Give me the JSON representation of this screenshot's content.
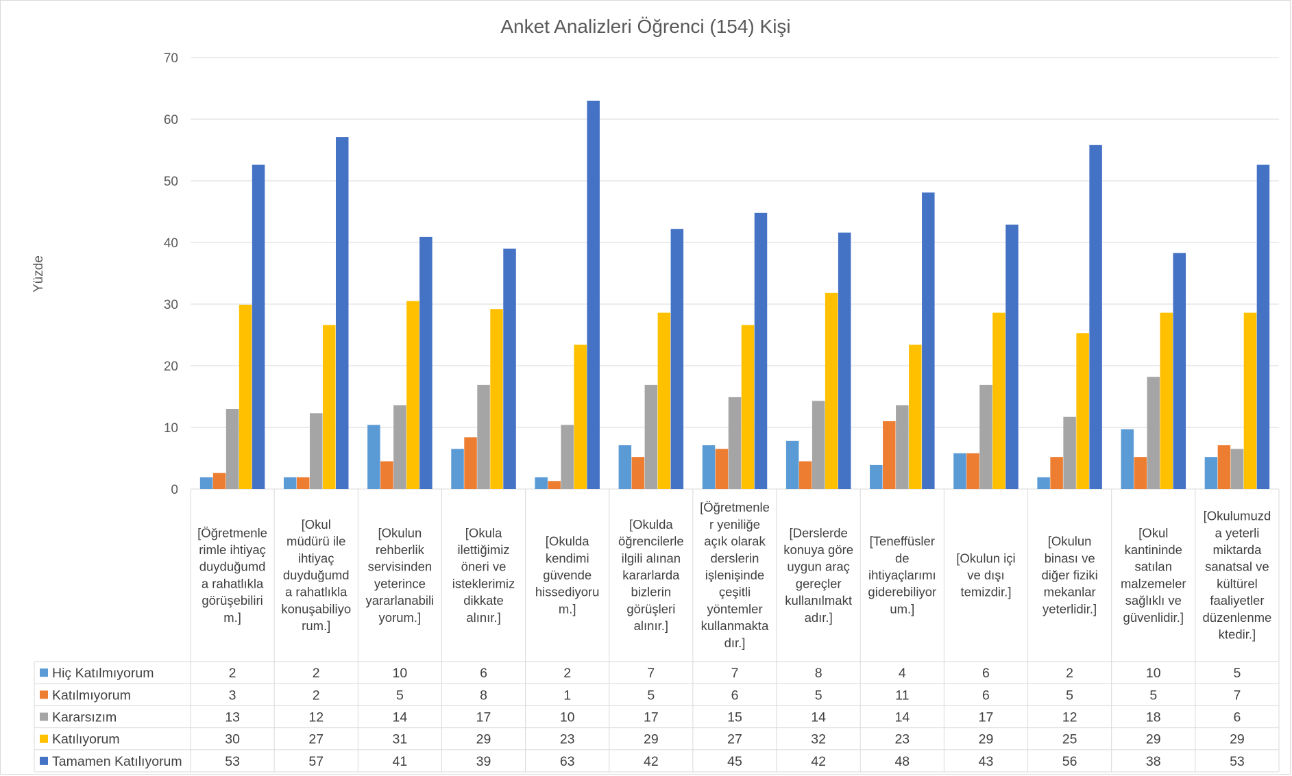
{
  "chart_data": {
    "type": "bar",
    "title": "Anket Analizleri Öğrenci (154) Kişi",
    "ylabel": "Yüzde",
    "xlabel": "",
    "ylim": [
      0,
      70
    ],
    "yticks": [
      0,
      10,
      20,
      30,
      40,
      50,
      60,
      70
    ],
    "grid": true,
    "legend": "data-table-left",
    "categories": [
      [
        "[Öğretmenle",
        "rimle ihtiyaç",
        "duyduğumd",
        "a rahatlıkla",
        "görüşebiliri",
        "m.]"
      ],
      [
        "[Okul",
        "müdürü ile",
        "ihtiyaç",
        "duyduğumd",
        "a rahatlıkla",
        "konuşabiliyo",
        "rum.]"
      ],
      [
        "[Okulun",
        "rehberlik",
        "servisinden",
        "yeterince",
        "yararlanabili",
        "yorum.]"
      ],
      [
        "[Okula",
        "ilettiğimiz",
        "öneri ve",
        "isteklerimiz",
        "dikkate",
        "alınır.]"
      ],
      [
        "[Okulda",
        "kendimi",
        "güvende",
        "hissediyoru",
        "m.]"
      ],
      [
        "[Okulda",
        "öğrencilerle",
        "ilgili alınan",
        "kararlarda",
        "bizlerin",
        "görüşleri",
        "alınır.]"
      ],
      [
        "[Öğretmenle",
        "r yeniliğe",
        "açık olarak",
        "derslerin",
        "işlenişinde",
        "çeşitli",
        "yöntemler",
        "kullanmakta",
        "dır.]"
      ],
      [
        "[Derslerde",
        "konuya göre",
        "uygun araç",
        "gereçler",
        "kullanılmakt",
        "adır.]"
      ],
      [
        "[Teneffüsler",
        "de",
        "ihtiyaçlarımı",
        "giderebiliyor",
        "um.]"
      ],
      [
        "[Okulun içi",
        "ve dışı",
        "temizdir.]"
      ],
      [
        "[Okulun",
        "binası ve",
        "diğer fiziki",
        "mekanlar",
        "yeterlidir.]"
      ],
      [
        "[Okul",
        "kantininde",
        "satılan",
        "malzemeler",
        "sağlıklı ve",
        "güvenlidir.]"
      ],
      [
        "[Okulumuzd",
        "a yeterli",
        "miktarda",
        "sanatsal ve",
        "kültürel",
        "faaliyetler",
        "düzenlenme",
        "ktedir.]"
      ]
    ],
    "series": [
      {
        "name": "Hiç Katılmıyorum",
        "color": "#5b9bd5",
        "labels": [
          2,
          2,
          10,
          6,
          2,
          7,
          7,
          8,
          4,
          6,
          2,
          10,
          5
        ],
        "values": [
          1.9,
          1.9,
          10.4,
          6.5,
          1.9,
          7.1,
          7.1,
          7.8,
          3.9,
          5.8,
          1.9,
          9.7,
          5.2
        ]
      },
      {
        "name": "Katılmıyorum",
        "color": "#ed7d31",
        "labels": [
          3,
          2,
          5,
          8,
          1,
          5,
          6,
          5,
          11,
          6,
          5,
          5,
          7
        ],
        "values": [
          2.6,
          1.9,
          4.5,
          8.4,
          1.3,
          5.2,
          6.5,
          4.5,
          11.0,
          5.8,
          5.2,
          5.2,
          7.1
        ]
      },
      {
        "name": "Kararsızım",
        "color": "#a5a5a5",
        "labels": [
          13,
          12,
          14,
          17,
          10,
          17,
          15,
          14,
          14,
          17,
          12,
          18,
          6
        ],
        "values": [
          13.0,
          12.3,
          13.6,
          16.9,
          10.4,
          16.9,
          14.9,
          14.3,
          13.6,
          16.9,
          11.7,
          18.2,
          6.5
        ]
      },
      {
        "name": "Katılıyorum",
        "color": "#ffc000",
        "labels": [
          30,
          27,
          31,
          29,
          23,
          29,
          27,
          32,
          23,
          29,
          25,
          29,
          29
        ],
        "values": [
          29.9,
          26.6,
          30.5,
          29.2,
          23.4,
          28.6,
          26.6,
          31.8,
          23.4,
          28.6,
          25.3,
          28.6,
          28.6
        ]
      },
      {
        "name": "Tamamen Katılıyorum",
        "color": "#4472c4",
        "labels": [
          53,
          57,
          41,
          39,
          63,
          42,
          45,
          42,
          48,
          43,
          56,
          38,
          53
        ],
        "values": [
          52.6,
          57.1,
          40.9,
          39.0,
          63.0,
          42.2,
          44.8,
          41.6,
          48.1,
          42.9,
          55.8,
          38.3,
          52.6
        ]
      }
    ]
  }
}
